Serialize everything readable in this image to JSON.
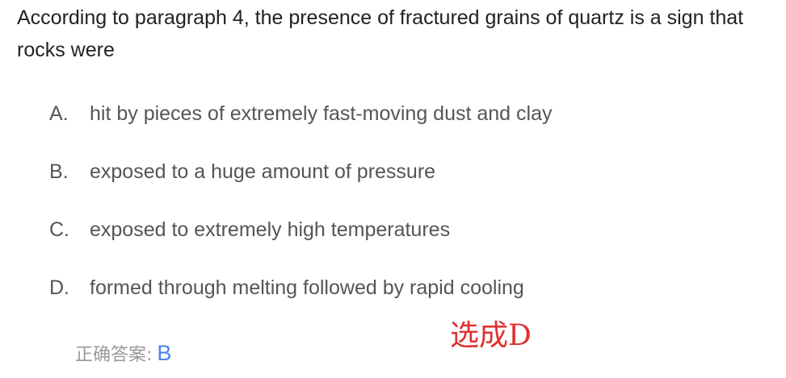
{
  "question": {
    "text": "According to paragraph 4, the presence of fractured grains of quartz is a sign that rocks were"
  },
  "options": [
    {
      "letter": "A.",
      "text": "hit by pieces of extremely fast-moving dust and clay"
    },
    {
      "letter": "B.",
      "text": "exposed to a huge amount of pressure"
    },
    {
      "letter": "C.",
      "text": "exposed to extremely high temperatures"
    },
    {
      "letter": "D.",
      "text": "formed through melting followed by rapid cooling"
    }
  ],
  "answer": {
    "label": "正确答案:",
    "value": "B"
  },
  "note": {
    "text": "选成D",
    "color": "#e03030"
  }
}
